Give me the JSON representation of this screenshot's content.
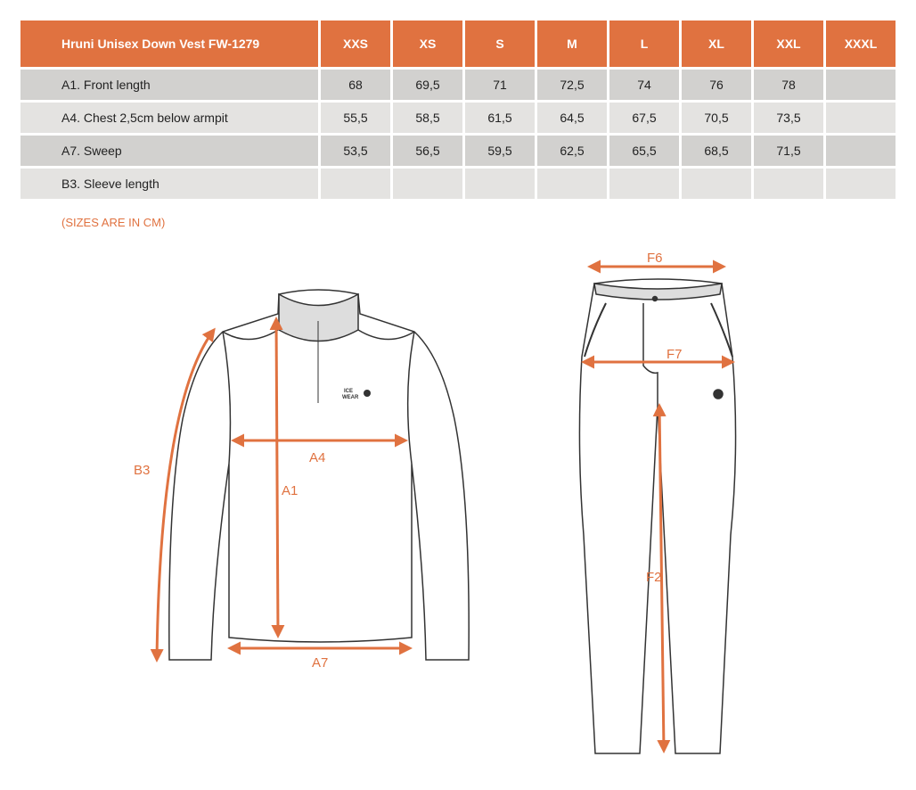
{
  "table": {
    "title": "Hruni Unisex Down Vest FW-1279",
    "sizes": [
      "XXS",
      "XS",
      "S",
      "M",
      "L",
      "XL",
      "XXL",
      "XXXL"
    ],
    "rows": [
      {
        "label": "A1. Front length",
        "values": [
          "68",
          "69,5",
          "71",
          "72,5",
          "74",
          "76",
          "78",
          ""
        ]
      },
      {
        "label": "A4. Chest 2,5cm below armpit",
        "values": [
          "55,5",
          "58,5",
          "61,5",
          "64,5",
          "67,5",
          "70,5",
          "73,5",
          ""
        ]
      },
      {
        "label": "A7. Sweep",
        "values": [
          "53,5",
          "56,5",
          "59,5",
          "62,5",
          "65,5",
          "68,5",
          "71,5",
          ""
        ]
      },
      {
        "label": "B3. Sleeve length",
        "values": [
          "",
          "",
          "",
          "",
          "",
          "",
          "",
          ""
        ]
      }
    ],
    "header_color": "#E07240"
  },
  "note": "(SIZES ARE IN CM)",
  "diagram": {
    "top_labels": {
      "b3": "B3",
      "a1": "A1",
      "a4": "A4",
      "a7": "A7"
    },
    "pants_labels": {
      "f6": "F6",
      "f7": "F7",
      "f2": "F2"
    },
    "logo": "ICE WEAR",
    "accent": "#E07240"
  }
}
